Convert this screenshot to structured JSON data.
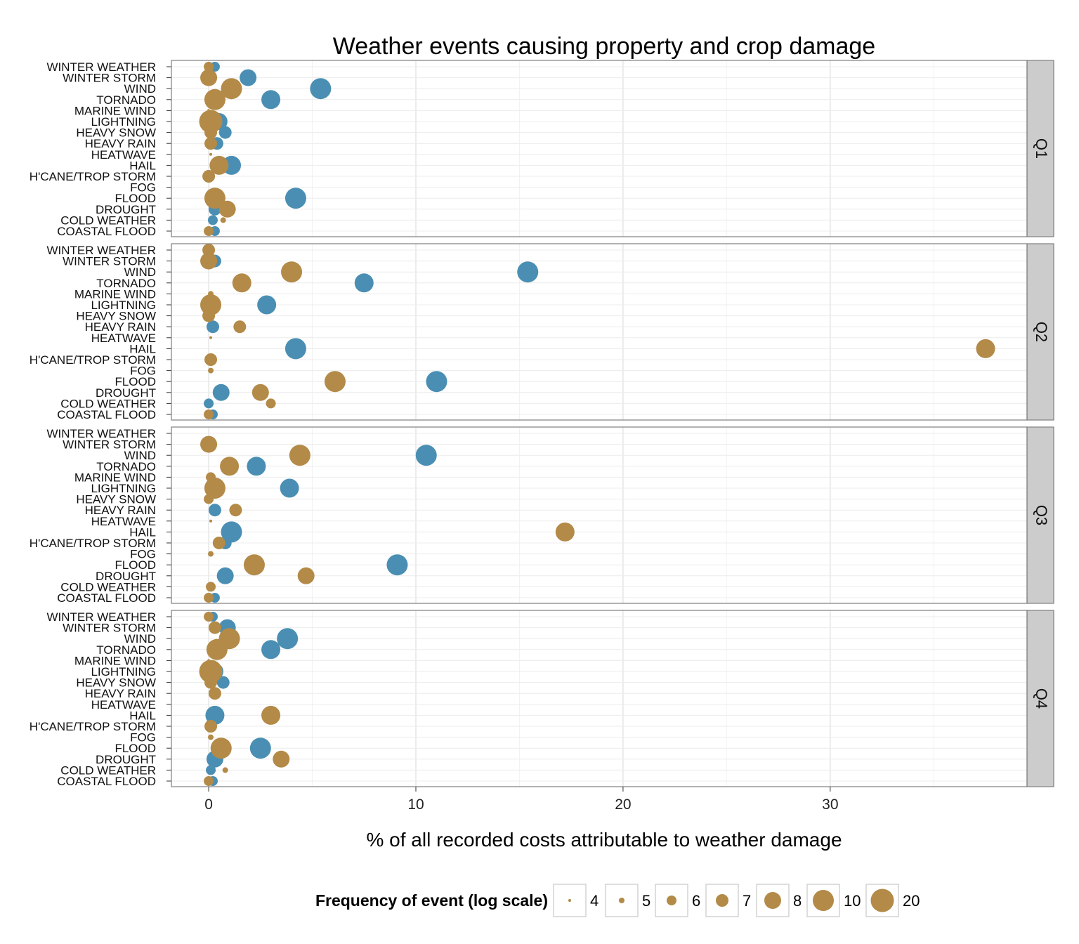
{
  "chart_data": {
    "type": "scatter",
    "title": "Weather events causing property and crop damage",
    "xlabel": "% of all recorded costs attributable to weather damage",
    "ylabel": "",
    "xlim": [
      -1.8,
      39.5
    ],
    "x_ticks": [
      0,
      10,
      20,
      30
    ],
    "grid": true,
    "legend_position": "bottom",
    "categories": [
      "WINTER WEATHER",
      "WINTER STORM",
      "WIND",
      "TORNADO",
      "MARINE WIND",
      "LIGHTNING",
      "HEAVY SNOW",
      "HEAVY RAIN",
      "HEATWAVE",
      "HAIL",
      "H'CANE/TROP STORM",
      "FOG",
      "FLOOD",
      "DROUGHT",
      "COLD WEATHER",
      "COASTAL FLOOD"
    ],
    "facets": [
      "Q1",
      "Q2",
      "Q3",
      "Q4"
    ],
    "colors": {
      "blue": "#4a8fb3",
      "gold": "#b38a47",
      "strip_bg": "#cccccc",
      "grid": "#ebebeb",
      "border": "#7f7f7f"
    },
    "size_legend": {
      "title": "Frequency of event (log scale)",
      "labels": [
        "4",
        "5",
        "6",
        "7",
        "8",
        "10",
        "20"
      ],
      "values": [
        4,
        5,
        6,
        7,
        8,
        10,
        20
      ]
    },
    "series": [
      {
        "color": "blue",
        "points": [
          {
            "facet": "Q1",
            "category": "WINTER WEATHER",
            "x": 0.3,
            "size": 6
          },
          {
            "facet": "Q1",
            "category": "WINTER STORM",
            "x": 1.9,
            "size": 8
          },
          {
            "facet": "Q1",
            "category": "WIND",
            "x": 5.4,
            "size": 10
          },
          {
            "facet": "Q1",
            "category": "TORNADO",
            "x": 3.0,
            "size": 9
          },
          {
            "facet": "Q1",
            "category": "LIGHTNING",
            "x": 0.5,
            "size": 8
          },
          {
            "facet": "Q1",
            "category": "HEAVY SNOW",
            "x": 0.8,
            "size": 7
          },
          {
            "facet": "Q1",
            "category": "HEAVY RAIN",
            "x": 0.4,
            "size": 7
          },
          {
            "facet": "Q1",
            "category": "HAIL",
            "x": 1.1,
            "size": 9
          },
          {
            "facet": "Q1",
            "category": "FLOOD",
            "x": 4.2,
            "size": 10
          },
          {
            "facet": "Q1",
            "category": "DROUGHT",
            "x": 0.3,
            "size": 7
          },
          {
            "facet": "Q1",
            "category": "COLD WEATHER",
            "x": 0.2,
            "size": 6
          },
          {
            "facet": "Q1",
            "category": "COASTAL FLOOD",
            "x": 0.3,
            "size": 6
          },
          {
            "facet": "Q2",
            "category": "WINTER STORM",
            "x": 0.3,
            "size": 7
          },
          {
            "facet": "Q2",
            "category": "WIND",
            "x": 15.4,
            "size": 10
          },
          {
            "facet": "Q2",
            "category": "TORNADO",
            "x": 7.5,
            "size": 9
          },
          {
            "facet": "Q2",
            "category": "LIGHTNING",
            "x": 2.8,
            "size": 9
          },
          {
            "facet": "Q2",
            "category": "HEAVY RAIN",
            "x": 0.2,
            "size": 7
          },
          {
            "facet": "Q2",
            "category": "HAIL",
            "x": 4.2,
            "size": 10
          },
          {
            "facet": "Q2",
            "category": "FLOOD",
            "x": 11.0,
            "size": 10
          },
          {
            "facet": "Q2",
            "category": "DROUGHT",
            "x": 0.6,
            "size": 8
          },
          {
            "facet": "Q2",
            "category": "COLD WEATHER",
            "x": 0.0,
            "size": 6
          },
          {
            "facet": "Q2",
            "category": "COASTAL FLOOD",
            "x": 0.2,
            "size": 6
          },
          {
            "facet": "Q3",
            "category": "WIND",
            "x": 10.5,
            "size": 10
          },
          {
            "facet": "Q3",
            "category": "TORNADO",
            "x": 2.3,
            "size": 9
          },
          {
            "facet": "Q3",
            "category": "LIGHTNING",
            "x": 3.9,
            "size": 9
          },
          {
            "facet": "Q3",
            "category": "HEAVY RAIN",
            "x": 0.3,
            "size": 7
          },
          {
            "facet": "Q3",
            "category": "HAIL",
            "x": 1.1,
            "size": 10
          },
          {
            "facet": "Q3",
            "category": "H'CANE/TROP STORM",
            "x": 0.8,
            "size": 7
          },
          {
            "facet": "Q3",
            "category": "FLOOD",
            "x": 9.1,
            "size": 10
          },
          {
            "facet": "Q3",
            "category": "DROUGHT",
            "x": 0.8,
            "size": 8
          },
          {
            "facet": "Q3",
            "category": "COASTAL FLOOD",
            "x": 0.3,
            "size": 6
          },
          {
            "facet": "Q4",
            "category": "WINTER WEATHER",
            "x": 0.2,
            "size": 6
          },
          {
            "facet": "Q4",
            "category": "WINTER STORM",
            "x": 0.9,
            "size": 8
          },
          {
            "facet": "Q4",
            "category": "WIND",
            "x": 3.8,
            "size": 10
          },
          {
            "facet": "Q4",
            "category": "TORNADO",
            "x": 3.0,
            "size": 9
          },
          {
            "facet": "Q4",
            "category": "LIGHTNING",
            "x": 0.3,
            "size": 8
          },
          {
            "facet": "Q4",
            "category": "HEAVY SNOW",
            "x": 0.7,
            "size": 7
          },
          {
            "facet": "Q4",
            "category": "HAIL",
            "x": 0.3,
            "size": 9
          },
          {
            "facet": "Q4",
            "category": "FLOOD",
            "x": 2.5,
            "size": 10
          },
          {
            "facet": "Q4",
            "category": "DROUGHT",
            "x": 0.3,
            "size": 8
          },
          {
            "facet": "Q4",
            "category": "COLD WEATHER",
            "x": 0.1,
            "size": 6
          },
          {
            "facet": "Q4",
            "category": "COASTAL FLOOD",
            "x": 0.2,
            "size": 6
          }
        ]
      },
      {
        "color": "gold",
        "points": [
          {
            "facet": "Q1",
            "category": "WINTER WEATHER",
            "x": 0.0,
            "size": 6
          },
          {
            "facet": "Q1",
            "category": "WINTER STORM",
            "x": 0.0,
            "size": 8
          },
          {
            "facet": "Q1",
            "category": "WIND",
            "x": 1.1,
            "size": 10
          },
          {
            "facet": "Q1",
            "category": "TORNADO",
            "x": 0.3,
            "size": 10
          },
          {
            "facet": "Q1",
            "category": "MARINE WIND",
            "x": 0.0,
            "size": 4
          },
          {
            "facet": "Q1",
            "category": "LIGHTNING",
            "x": 0.1,
            "size": 20
          },
          {
            "facet": "Q1",
            "category": "HEAVY SNOW",
            "x": 0.1,
            "size": 7
          },
          {
            "facet": "Q1",
            "category": "HEAVY RAIN",
            "x": 0.1,
            "size": 7
          },
          {
            "facet": "Q1",
            "category": "HEATWAVE",
            "x": 0.1,
            "size": 4
          },
          {
            "facet": "Q1",
            "category": "HAIL",
            "x": 0.5,
            "size": 9
          },
          {
            "facet": "Q1",
            "category": "H'CANE/TROP STORM",
            "x": 0.0,
            "size": 7
          },
          {
            "facet": "Q1",
            "category": "FLOOD",
            "x": 0.3,
            "size": 10
          },
          {
            "facet": "Q1",
            "category": "DROUGHT",
            "x": 0.9,
            "size": 8
          },
          {
            "facet": "Q1",
            "category": "COLD WEATHER",
            "x": 0.7,
            "size": 5
          },
          {
            "facet": "Q1",
            "category": "COASTAL FLOOD",
            "x": 0.0,
            "size": 6
          },
          {
            "facet": "Q2",
            "category": "WINTER WEATHER",
            "x": 0.0,
            "size": 7
          },
          {
            "facet": "Q2",
            "category": "WINTER STORM",
            "x": 0.0,
            "size": 8
          },
          {
            "facet": "Q2",
            "category": "WIND",
            "x": 4.0,
            "size": 10
          },
          {
            "facet": "Q2",
            "category": "TORNADO",
            "x": 1.6,
            "size": 9
          },
          {
            "facet": "Q2",
            "category": "MARINE WIND",
            "x": 0.1,
            "size": 5
          },
          {
            "facet": "Q2",
            "category": "LIGHTNING",
            "x": 0.1,
            "size": 10
          },
          {
            "facet": "Q2",
            "category": "HEAVY SNOW",
            "x": 0.0,
            "size": 7
          },
          {
            "facet": "Q2",
            "category": "HEAVY RAIN",
            "x": 1.5,
            "size": 7
          },
          {
            "facet": "Q2",
            "category": "HEATWAVE",
            "x": 0.1,
            "size": 4
          },
          {
            "facet": "Q2",
            "category": "HAIL",
            "x": 37.5,
            "size": 9
          },
          {
            "facet": "Q2",
            "category": "H'CANE/TROP STORM",
            "x": 0.1,
            "size": 7
          },
          {
            "facet": "Q2",
            "category": "FOG",
            "x": 0.1,
            "size": 5
          },
          {
            "facet": "Q2",
            "category": "FLOOD",
            "x": 6.1,
            "size": 10
          },
          {
            "facet": "Q2",
            "category": "DROUGHT",
            "x": 2.5,
            "size": 8
          },
          {
            "facet": "Q2",
            "category": "COLD WEATHER",
            "x": 3.0,
            "size": 6
          },
          {
            "facet": "Q2",
            "category": "COASTAL FLOOD",
            "x": 0.0,
            "size": 6
          },
          {
            "facet": "Q3",
            "category": "WINTER STORM",
            "x": 0.0,
            "size": 8
          },
          {
            "facet": "Q3",
            "category": "WIND",
            "x": 4.4,
            "size": 10
          },
          {
            "facet": "Q3",
            "category": "TORNADO",
            "x": 1.0,
            "size": 9
          },
          {
            "facet": "Q3",
            "category": "MARINE WIND",
            "x": 0.1,
            "size": 6
          },
          {
            "facet": "Q3",
            "category": "LIGHTNING",
            "x": 0.3,
            "size": 10
          },
          {
            "facet": "Q3",
            "category": "HEAVY SNOW",
            "x": 0.0,
            "size": 6
          },
          {
            "facet": "Q3",
            "category": "HEAVY RAIN",
            "x": 1.3,
            "size": 7
          },
          {
            "facet": "Q3",
            "category": "HEATWAVE",
            "x": 0.1,
            "size": 4
          },
          {
            "facet": "Q3",
            "category": "HAIL",
            "x": 17.2,
            "size": 9
          },
          {
            "facet": "Q3",
            "category": "H'CANE/TROP STORM",
            "x": 0.5,
            "size": 7
          },
          {
            "facet": "Q3",
            "category": "FOG",
            "x": 0.1,
            "size": 5
          },
          {
            "facet": "Q3",
            "category": "FLOOD",
            "x": 2.2,
            "size": 10
          },
          {
            "facet": "Q3",
            "category": "DROUGHT",
            "x": 4.7,
            "size": 8
          },
          {
            "facet": "Q3",
            "category": "COLD WEATHER",
            "x": 0.1,
            "size": 6
          },
          {
            "facet": "Q3",
            "category": "COASTAL FLOOD",
            "x": 0.0,
            "size": 6
          },
          {
            "facet": "Q4",
            "category": "WINTER WEATHER",
            "x": 0.0,
            "size": 6
          },
          {
            "facet": "Q4",
            "category": "WINTER STORM",
            "x": 0.3,
            "size": 7
          },
          {
            "facet": "Q4",
            "category": "WIND",
            "x": 1.0,
            "size": 10
          },
          {
            "facet": "Q4",
            "category": "TORNADO",
            "x": 0.4,
            "size": 10
          },
          {
            "facet": "Q4",
            "category": "MARINE WIND",
            "x": 0.0,
            "size": 4
          },
          {
            "facet": "Q4",
            "category": "LIGHTNING",
            "x": 0.1,
            "size": 20
          },
          {
            "facet": "Q4",
            "category": "HEAVY SNOW",
            "x": 0.1,
            "size": 7
          },
          {
            "facet": "Q4",
            "category": "HEAVY RAIN",
            "x": 0.3,
            "size": 7
          },
          {
            "facet": "Q4",
            "category": "HAIL",
            "x": 3.0,
            "size": 9
          },
          {
            "facet": "Q4",
            "category": "H'CANE/TROP STORM",
            "x": 0.1,
            "size": 7
          },
          {
            "facet": "Q4",
            "category": "FOG",
            "x": 0.1,
            "size": 5
          },
          {
            "facet": "Q4",
            "category": "FLOOD",
            "x": 0.6,
            "size": 10
          },
          {
            "facet": "Q4",
            "category": "DROUGHT",
            "x": 3.5,
            "size": 8
          },
          {
            "facet": "Q4",
            "category": "COLD WEATHER",
            "x": 0.8,
            "size": 5
          },
          {
            "facet": "Q4",
            "category": "COASTAL FLOOD",
            "x": 0.0,
            "size": 6
          }
        ]
      }
    ]
  }
}
